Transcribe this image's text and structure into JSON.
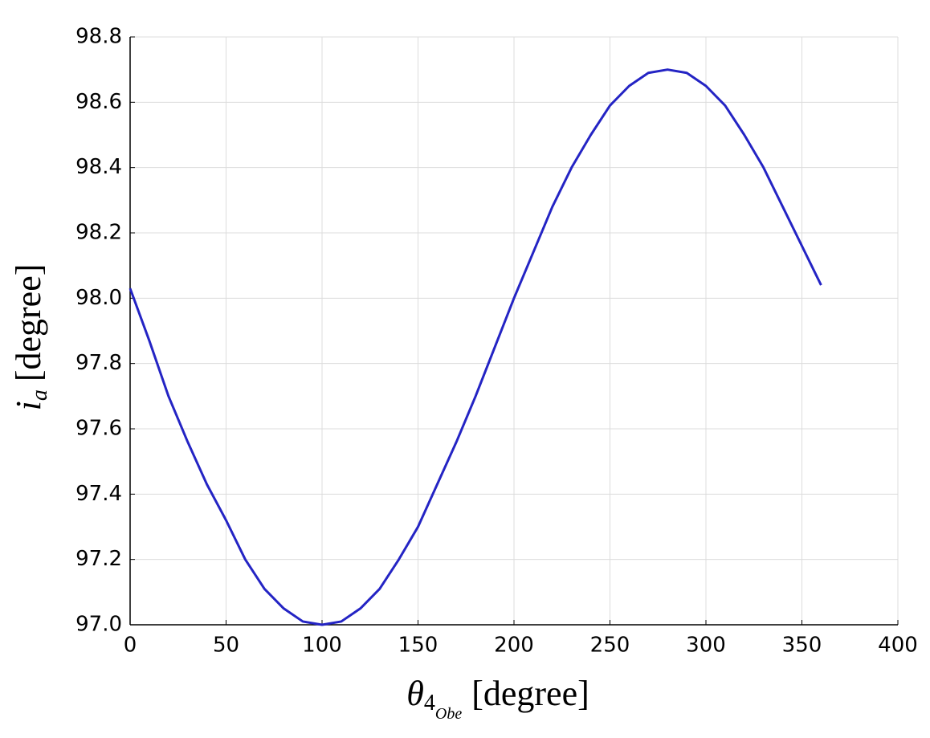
{
  "chart_data": {
    "type": "line",
    "x_label": {
      "symbol": "θ",
      "subscript": "4",
      "sub_subscript": "Obe",
      "unit": "[degree]"
    },
    "y_label": {
      "symbol": "i",
      "subscript": "a",
      "unit": "[degree]"
    },
    "x": [
      0,
      10,
      20,
      30,
      40,
      50,
      60,
      70,
      80,
      90,
      100,
      110,
      120,
      130,
      140,
      150,
      160,
      170,
      180,
      190,
      200,
      210,
      220,
      230,
      240,
      250,
      260,
      270,
      280,
      290,
      300,
      310,
      320,
      330,
      340,
      350,
      360
    ],
    "series": [
      {
        "color": "#2424c4",
        "values": [
          98.03,
          97.87,
          97.7,
          97.56,
          97.43,
          97.32,
          97.2,
          97.11,
          97.05,
          97.01,
          97.0,
          97.01,
          97.05,
          97.11,
          97.2,
          97.3,
          97.43,
          97.56,
          97.7,
          97.85,
          98.0,
          98.14,
          98.28,
          98.4,
          98.5,
          98.59,
          98.65,
          98.69,
          98.7,
          98.69,
          98.65,
          98.59,
          98.5,
          98.4,
          98.28,
          98.16,
          98.04
        ]
      }
    ],
    "xlim": [
      0,
      400
    ],
    "xticks": [
      0,
      50,
      100,
      150,
      200,
      250,
      300,
      350,
      400
    ],
    "ylim": [
      97,
      98.8
    ],
    "yticks": [
      {
        "value": 97,
        "label": "97.0"
      },
      97.2,
      97.4,
      97.6,
      97.8,
      {
        "value": 98,
        "label": "98.0"
      },
      98.2,
      98.4,
      98.6,
      98.8
    ],
    "grid": true
  }
}
